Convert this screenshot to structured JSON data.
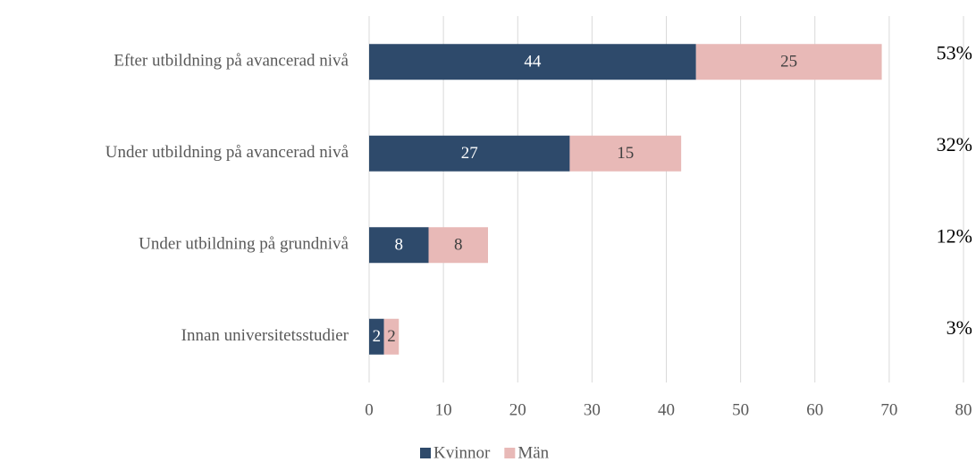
{
  "chart_data": {
    "type": "stacked_barh",
    "categories": [
      "Efter utbildning på avancerad nivå",
      "Under utbildning på avancerad nivå",
      "Under utbildning på grundnivå",
      "Innan universitetsstudier"
    ],
    "series": [
      {
        "name": "Kvinnor",
        "color": "#2e4a6b",
        "values": [
          44,
          27,
          8,
          2
        ]
      },
      {
        "name": "Män",
        "color": "#e8b9b7",
        "values": [
          25,
          15,
          8,
          2
        ]
      }
    ],
    "annotations": [
      "53%",
      "32%",
      "12%",
      "3%"
    ],
    "xlim": [
      0,
      80
    ],
    "xticks": [
      0,
      10,
      20,
      30,
      40,
      50,
      60,
      70,
      80
    ],
    "grid": true,
    "legend": "bottom"
  }
}
